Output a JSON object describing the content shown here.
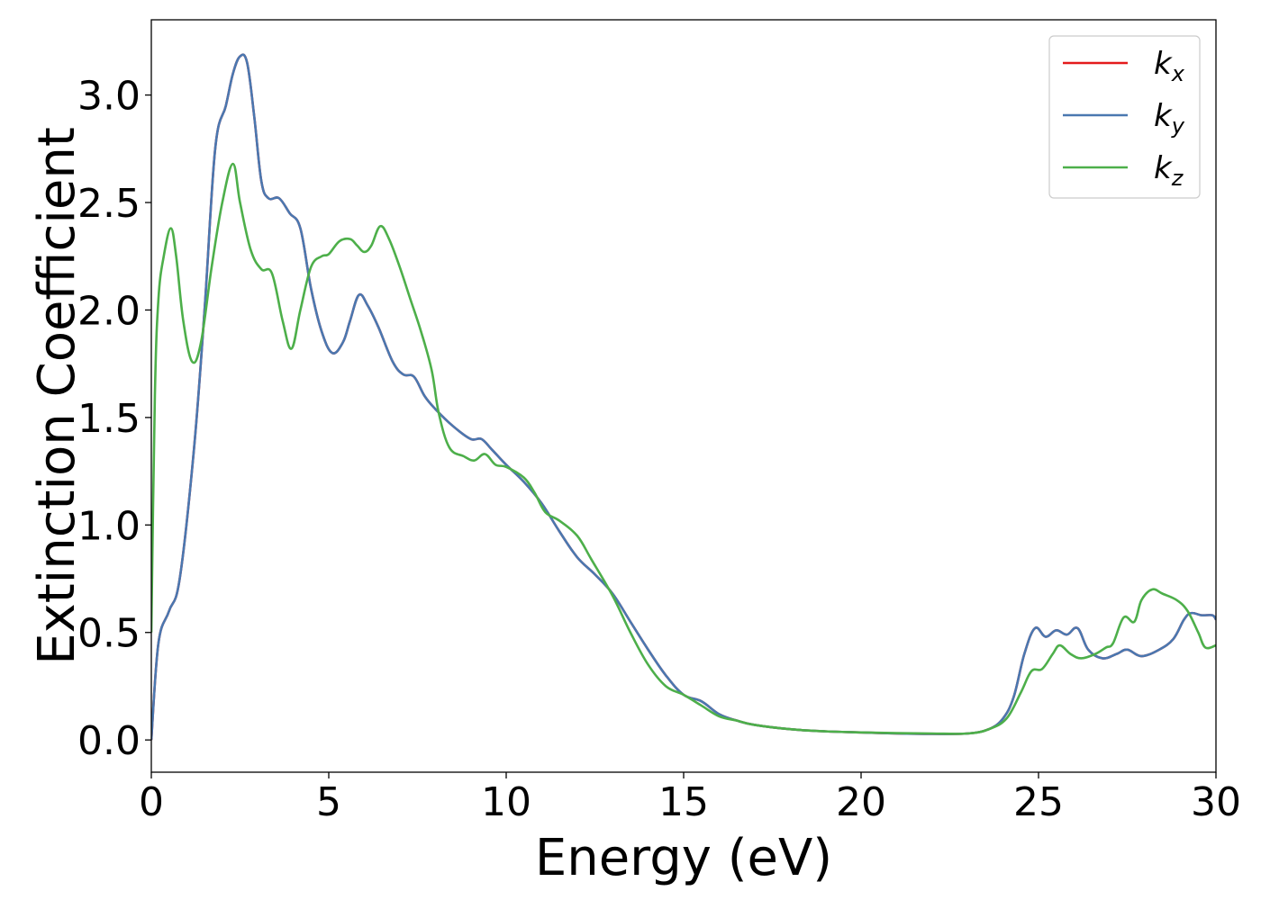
{
  "chart_data": {
    "type": "line",
    "title": "",
    "xlabel": "Energy (eV)",
    "ylabel": "Extinction Coefficient",
    "xlim": [
      0,
      30
    ],
    "ylim": [
      -0.15,
      3.35
    ],
    "xticks": [
      0,
      5,
      10,
      15,
      20,
      25,
      30
    ],
    "xtick_labels": [
      "0",
      "5",
      "10",
      "15",
      "20",
      "25",
      "30"
    ],
    "yticks": [
      0.0,
      0.5,
      1.0,
      1.5,
      2.0,
      2.5,
      3.0
    ],
    "ytick_labels": [
      "0.0",
      "0.5",
      "1.0",
      "1.5",
      "2.0",
      "2.5",
      "3.0"
    ],
    "grid": false,
    "legend_position": "top-right",
    "series": [
      {
        "name": "kx",
        "legend_base": "k",
        "legend_sub": "x",
        "color": "#e41a1c",
        "points": [
          [
            0,
            0
          ],
          [
            0.2,
            0.45
          ],
          [
            0.5,
            0.6
          ],
          [
            0.8,
            0.75
          ],
          [
            1.2,
            1.35
          ],
          [
            1.5,
            2.0
          ],
          [
            1.8,
            2.75
          ],
          [
            2.1,
            2.95
          ],
          [
            2.3,
            3.1
          ],
          [
            2.5,
            3.18
          ],
          [
            2.7,
            3.15
          ],
          [
            2.9,
            2.9
          ],
          [
            3.1,
            2.6
          ],
          [
            3.3,
            2.52
          ],
          [
            3.6,
            2.52
          ],
          [
            3.9,
            2.45
          ],
          [
            4.2,
            2.38
          ],
          [
            4.5,
            2.1
          ],
          [
            4.8,
            1.9
          ],
          [
            5.1,
            1.8
          ],
          [
            5.4,
            1.85
          ],
          [
            5.6,
            1.95
          ],
          [
            5.85,
            2.07
          ],
          [
            6.1,
            2.02
          ],
          [
            6.4,
            1.92
          ],
          [
            6.8,
            1.76
          ],
          [
            7.1,
            1.7
          ],
          [
            7.4,
            1.69
          ],
          [
            7.7,
            1.6
          ],
          [
            8.0,
            1.54
          ],
          [
            8.5,
            1.46
          ],
          [
            9.0,
            1.4
          ],
          [
            9.3,
            1.4
          ],
          [
            9.6,
            1.35
          ],
          [
            10.0,
            1.28
          ],
          [
            10.5,
            1.2
          ],
          [
            11.0,
            1.1
          ],
          [
            11.5,
            0.97
          ],
          [
            12.0,
            0.85
          ],
          [
            12.5,
            0.77
          ],
          [
            13.0,
            0.68
          ],
          [
            13.5,
            0.55
          ],
          [
            14.0,
            0.42
          ],
          [
            14.5,
            0.3
          ],
          [
            15.0,
            0.21
          ],
          [
            15.5,
            0.18
          ],
          [
            16.0,
            0.12
          ],
          [
            16.5,
            0.09
          ],
          [
            17.0,
            0.07
          ],
          [
            18.0,
            0.05
          ],
          [
            19.0,
            0.04
          ],
          [
            20.0,
            0.035
          ],
          [
            21.0,
            0.03
          ],
          [
            22.0,
            0.028
          ],
          [
            23.0,
            0.03
          ],
          [
            23.6,
            0.05
          ],
          [
            24.0,
            0.1
          ],
          [
            24.3,
            0.2
          ],
          [
            24.6,
            0.4
          ],
          [
            24.9,
            0.52
          ],
          [
            25.2,
            0.48
          ],
          [
            25.5,
            0.51
          ],
          [
            25.8,
            0.49
          ],
          [
            26.1,
            0.52
          ],
          [
            26.4,
            0.42
          ],
          [
            26.8,
            0.38
          ],
          [
            27.2,
            0.4
          ],
          [
            27.5,
            0.42
          ],
          [
            27.9,
            0.39
          ],
          [
            28.4,
            0.42
          ],
          [
            28.8,
            0.47
          ],
          [
            29.1,
            0.56
          ],
          [
            29.3,
            0.59
          ],
          [
            29.6,
            0.58
          ],
          [
            29.9,
            0.58
          ],
          [
            30.0,
            0.56
          ]
        ]
      },
      {
        "name": "ky",
        "legend_base": "k",
        "legend_sub": "y",
        "color": "#4a78b0",
        "points": [
          [
            0,
            0
          ],
          [
            0.2,
            0.45
          ],
          [
            0.5,
            0.6
          ],
          [
            0.8,
            0.75
          ],
          [
            1.2,
            1.35
          ],
          [
            1.5,
            2.0
          ],
          [
            1.8,
            2.75
          ],
          [
            2.1,
            2.95
          ],
          [
            2.3,
            3.1
          ],
          [
            2.5,
            3.18
          ],
          [
            2.7,
            3.15
          ],
          [
            2.9,
            2.9
          ],
          [
            3.1,
            2.6
          ],
          [
            3.3,
            2.52
          ],
          [
            3.6,
            2.52
          ],
          [
            3.9,
            2.45
          ],
          [
            4.2,
            2.38
          ],
          [
            4.5,
            2.1
          ],
          [
            4.8,
            1.9
          ],
          [
            5.1,
            1.8
          ],
          [
            5.4,
            1.85
          ],
          [
            5.6,
            1.95
          ],
          [
            5.85,
            2.07
          ],
          [
            6.1,
            2.02
          ],
          [
            6.4,
            1.92
          ],
          [
            6.8,
            1.76
          ],
          [
            7.1,
            1.7
          ],
          [
            7.4,
            1.69
          ],
          [
            7.7,
            1.6
          ],
          [
            8.0,
            1.54
          ],
          [
            8.5,
            1.46
          ],
          [
            9.0,
            1.4
          ],
          [
            9.3,
            1.4
          ],
          [
            9.6,
            1.35
          ],
          [
            10.0,
            1.28
          ],
          [
            10.5,
            1.2
          ],
          [
            11.0,
            1.1
          ],
          [
            11.5,
            0.97
          ],
          [
            12.0,
            0.85
          ],
          [
            12.5,
            0.77
          ],
          [
            13.0,
            0.68
          ],
          [
            13.5,
            0.55
          ],
          [
            14.0,
            0.42
          ],
          [
            14.5,
            0.3
          ],
          [
            15.0,
            0.21
          ],
          [
            15.5,
            0.18
          ],
          [
            16.0,
            0.12
          ],
          [
            16.5,
            0.09
          ],
          [
            17.0,
            0.07
          ],
          [
            18.0,
            0.05
          ],
          [
            19.0,
            0.04
          ],
          [
            20.0,
            0.035
          ],
          [
            21.0,
            0.03
          ],
          [
            22.0,
            0.028
          ],
          [
            23.0,
            0.03
          ],
          [
            23.6,
            0.05
          ],
          [
            24.0,
            0.1
          ],
          [
            24.3,
            0.2
          ],
          [
            24.6,
            0.4
          ],
          [
            24.9,
            0.52
          ],
          [
            25.2,
            0.48
          ],
          [
            25.5,
            0.51
          ],
          [
            25.8,
            0.49
          ],
          [
            26.1,
            0.52
          ],
          [
            26.4,
            0.42
          ],
          [
            26.8,
            0.38
          ],
          [
            27.2,
            0.4
          ],
          [
            27.5,
            0.42
          ],
          [
            27.9,
            0.39
          ],
          [
            28.4,
            0.42
          ],
          [
            28.8,
            0.47
          ],
          [
            29.1,
            0.56
          ],
          [
            29.3,
            0.59
          ],
          [
            29.6,
            0.58
          ],
          [
            29.9,
            0.58
          ],
          [
            30.0,
            0.56
          ]
        ]
      },
      {
        "name": "kz",
        "legend_base": "k",
        "legend_sub": "z",
        "color": "#4daf4a",
        "points": [
          [
            0,
            0.5
          ],
          [
            0.1,
            1.6
          ],
          [
            0.2,
            2.05
          ],
          [
            0.35,
            2.25
          ],
          [
            0.55,
            2.38
          ],
          [
            0.7,
            2.25
          ],
          [
            0.9,
            1.95
          ],
          [
            1.15,
            1.76
          ],
          [
            1.4,
            1.85
          ],
          [
            1.7,
            2.2
          ],
          [
            2.0,
            2.5
          ],
          [
            2.3,
            2.68
          ],
          [
            2.5,
            2.5
          ],
          [
            2.8,
            2.28
          ],
          [
            3.1,
            2.19
          ],
          [
            3.4,
            2.17
          ],
          [
            3.7,
            1.95
          ],
          [
            3.95,
            1.82
          ],
          [
            4.2,
            2.0
          ],
          [
            4.5,
            2.2
          ],
          [
            4.8,
            2.25
          ],
          [
            5.0,
            2.26
          ],
          [
            5.3,
            2.32
          ],
          [
            5.6,
            2.33
          ],
          [
            5.8,
            2.3
          ],
          [
            6.0,
            2.27
          ],
          [
            6.2,
            2.3
          ],
          [
            6.45,
            2.39
          ],
          [
            6.7,
            2.33
          ],
          [
            7.0,
            2.2
          ],
          [
            7.3,
            2.05
          ],
          [
            7.6,
            1.9
          ],
          [
            7.9,
            1.72
          ],
          [
            8.1,
            1.52
          ],
          [
            8.4,
            1.36
          ],
          [
            8.8,
            1.32
          ],
          [
            9.1,
            1.3
          ],
          [
            9.4,
            1.33
          ],
          [
            9.7,
            1.28
          ],
          [
            10.0,
            1.27
          ],
          [
            10.5,
            1.22
          ],
          [
            10.8,
            1.15
          ],
          [
            11.1,
            1.06
          ],
          [
            11.5,
            1.02
          ],
          [
            12.0,
            0.95
          ],
          [
            12.4,
            0.84
          ],
          [
            13.0,
            0.67
          ],
          [
            13.5,
            0.5
          ],
          [
            14.0,
            0.35
          ],
          [
            14.5,
            0.25
          ],
          [
            15.0,
            0.21
          ],
          [
            15.5,
            0.16
          ],
          [
            16.0,
            0.11
          ],
          [
            16.5,
            0.09
          ],
          [
            17.0,
            0.07
          ],
          [
            18.0,
            0.05
          ],
          [
            19.0,
            0.04
          ],
          [
            20.0,
            0.035
          ],
          [
            21.0,
            0.032
          ],
          [
            22.0,
            0.03
          ],
          [
            23.0,
            0.03
          ],
          [
            23.6,
            0.05
          ],
          [
            24.1,
            0.1
          ],
          [
            24.5,
            0.22
          ],
          [
            24.8,
            0.32
          ],
          [
            25.1,
            0.33
          ],
          [
            25.4,
            0.4
          ],
          [
            25.6,
            0.44
          ],
          [
            25.9,
            0.4
          ],
          [
            26.2,
            0.38
          ],
          [
            26.6,
            0.4
          ],
          [
            26.9,
            0.43
          ],
          [
            27.1,
            0.45
          ],
          [
            27.4,
            0.57
          ],
          [
            27.7,
            0.55
          ],
          [
            27.9,
            0.65
          ],
          [
            28.2,
            0.7
          ],
          [
            28.5,
            0.68
          ],
          [
            28.9,
            0.65
          ],
          [
            29.2,
            0.6
          ],
          [
            29.5,
            0.5
          ],
          [
            29.7,
            0.43
          ],
          [
            30.0,
            0.44
          ]
        ]
      }
    ]
  }
}
